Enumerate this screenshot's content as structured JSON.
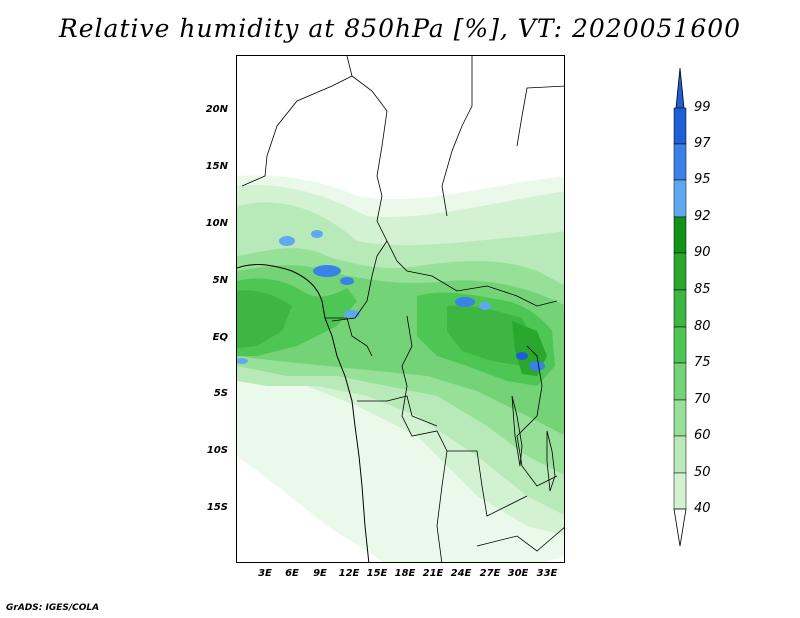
{
  "title": "Relative humidity at 850hPa [%], VT: 2020051600",
  "footer": "GrADS: IGES/COLA",
  "map": {
    "y_ticks": [
      "20N",
      "15N",
      "10N",
      "5N",
      "EQ",
      "5S",
      "10S",
      "15S"
    ],
    "x_ticks": [
      "3E",
      "6E",
      "9E",
      "12E",
      "15E",
      "18E",
      "21E",
      "24E",
      "27E",
      "30E",
      "33E"
    ]
  },
  "colorbar": {
    "levels": [
      "99",
      "97",
      "95",
      "92",
      "90",
      "85",
      "80",
      "75",
      "70",
      "60",
      "50",
      "40"
    ],
    "colors": [
      "#1e5fd6",
      "#3a82e6",
      "#60a8f0",
      "#13921a",
      "#2aa82e",
      "#3db741",
      "#4dc653",
      "#73d376",
      "#97e098",
      "#b8eab9",
      "#d2f2d2",
      "#ebf9eb",
      "#ffffff"
    ]
  }
}
